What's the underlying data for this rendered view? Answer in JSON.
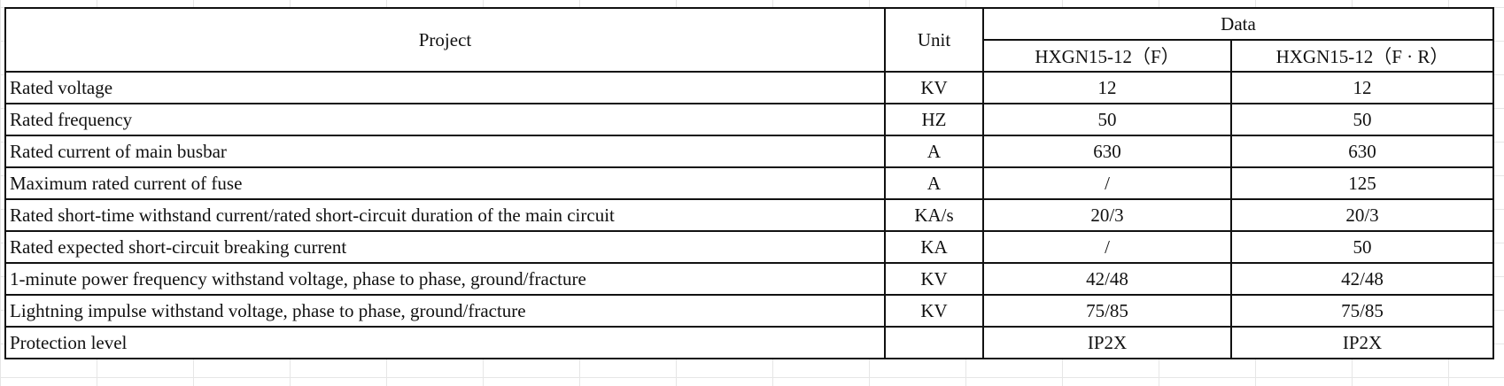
{
  "header": {
    "project": "Project",
    "unit": "Unit",
    "data": "Data",
    "models": [
      "HXGN15-12（F）",
      "HXGN15-12（F · R）"
    ]
  },
  "rows": [
    {
      "project": "Rated voltage",
      "unit": "KV",
      "f": "12",
      "fr": "12"
    },
    {
      "project": "Rated frequency",
      "unit": "HZ",
      "f": "50",
      "fr": "50"
    },
    {
      "project": "Rated current of main busbar",
      "unit": "A",
      "f": "630",
      "fr": "630"
    },
    {
      "project": "Maximum rated current of fuse",
      "unit": "A",
      "f": "/",
      "fr": "125"
    },
    {
      "project": "Rated short-time withstand current/rated short-circuit duration of the main circuit",
      "unit": "KA/s",
      "f": "20/3",
      "fr": "20/3"
    },
    {
      "project": "Rated expected short-circuit breaking current",
      "unit": "KA",
      "f": "/",
      "fr": "50"
    },
    {
      "project": "1-minute power frequency withstand voltage, phase to phase, ground/fracture",
      "unit": "KV",
      "f": "42/48",
      "fr": "42/48"
    },
    {
      "project": "Lightning impulse withstand voltage, phase to phase, ground/fracture",
      "unit": "KV",
      "f": "75/85",
      "fr": "75/85"
    },
    {
      "project": "Protection level",
      "unit": "",
      "f": "IP2X",
      "fr": "IP2X"
    }
  ]
}
